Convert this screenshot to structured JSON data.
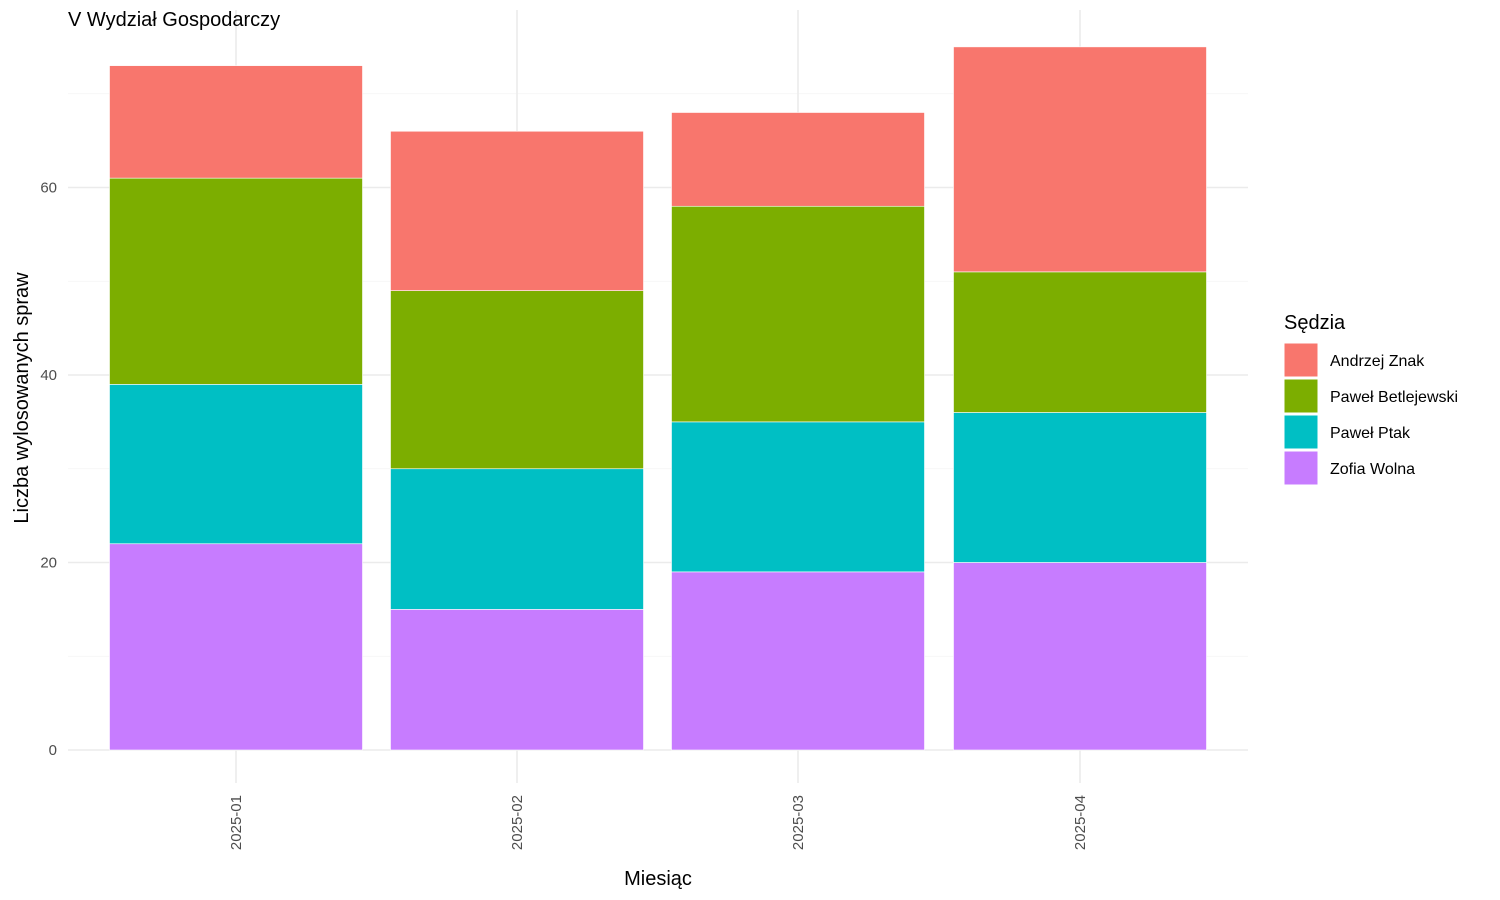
{
  "chart_data": {
    "type": "bar",
    "stacked": true,
    "title": "V Wydział Gospodarczy",
    "xlabel": "Miesiąc",
    "ylabel": "Liczba wylosowanych spraw",
    "categories": [
      "2025-01",
      "2025-02",
      "2025-03",
      "2025-04"
    ],
    "ylim": [
      0,
      75
    ],
    "yticks": [
      0,
      20,
      40,
      60
    ],
    "grid": true,
    "legend": {
      "title": "Sędzia",
      "placement": "right"
    },
    "series": [
      {
        "name": "Zofia Wolna",
        "color": "#C77CFF",
        "values": [
          22,
          15,
          19,
          20
        ]
      },
      {
        "name": "Paweł Ptak",
        "color": "#00BFC4",
        "values": [
          17,
          15,
          16,
          16
        ]
      },
      {
        "name": "Paweł Betlejewski",
        "color": "#7CAE00",
        "values": [
          22,
          19,
          23,
          15
        ]
      },
      {
        "name": "Andrzej Znak",
        "color": "#F8766D",
        "values": [
          12,
          17,
          10,
          24
        ]
      }
    ],
    "legend_order": [
      "Andrzej Znak",
      "Paweł Betlejewski",
      "Paweł Ptak",
      "Zofia Wolna"
    ]
  }
}
